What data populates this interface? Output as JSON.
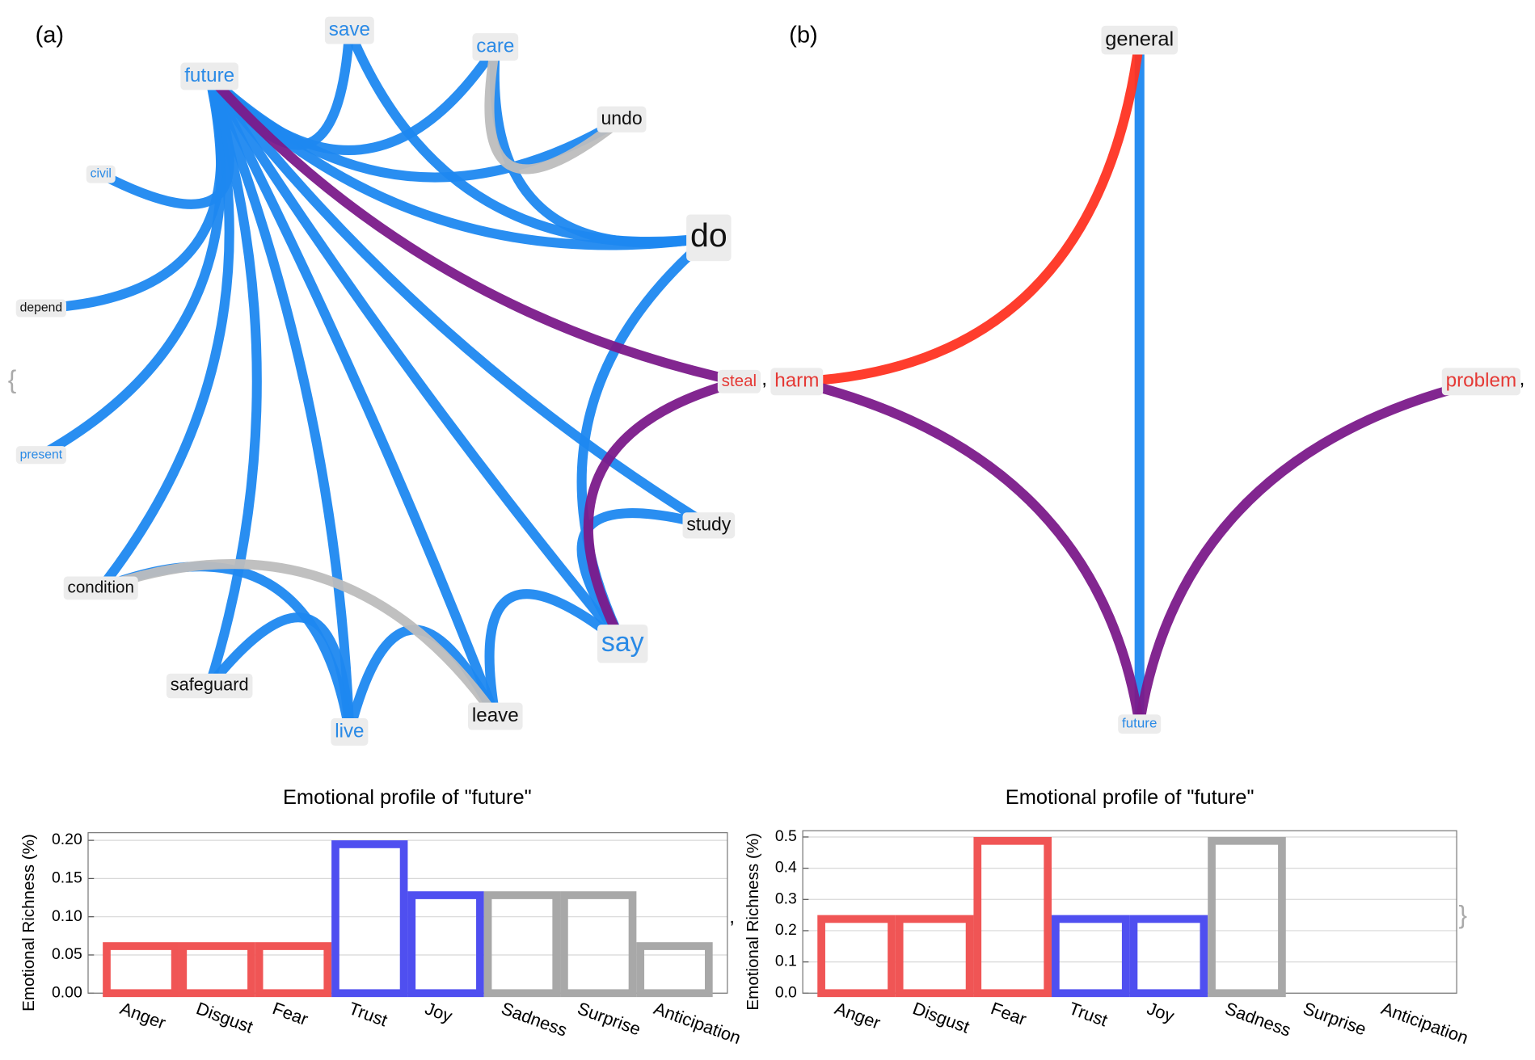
{
  "panel_labels": [
    "(a)",
    "(b)"
  ],
  "separators": {
    "open": "{",
    "close": "}",
    "comma": ","
  },
  "networks": [
    {
      "nodes": [
        {
          "label": "future",
          "color": "#2a8ae6"
        },
        {
          "label": "save",
          "color": "#2a8ae6"
        },
        {
          "label": "care",
          "color": "#2a8ae6"
        },
        {
          "label": "undo",
          "color": "#111111"
        },
        {
          "label": "do",
          "color": "#111111"
        },
        {
          "label": "steal",
          "color": "#e53935"
        },
        {
          "label": "study",
          "color": "#111111"
        },
        {
          "label": "say",
          "color": "#2a8ae6"
        },
        {
          "label": "leave",
          "color": "#111111"
        },
        {
          "label": "live",
          "color": "#2a8ae6"
        },
        {
          "label": "safeguard",
          "color": "#111111"
        },
        {
          "label": "condition",
          "color": "#111111"
        },
        {
          "label": "present",
          "color": "#2a8ae6"
        },
        {
          "label": "depend",
          "color": "#111111"
        },
        {
          "label": "civil",
          "color": "#2a8ae6"
        }
      ],
      "edges": [
        {
          "source": 0,
          "target": 1,
          "color": "#1e88f0"
        },
        {
          "source": 0,
          "target": 2,
          "color": "#1e88f0"
        },
        {
          "source": 0,
          "target": 3,
          "color": "#1e88f0"
        },
        {
          "source": 0,
          "target": 4,
          "color": "#1e88f0"
        },
        {
          "source": 0,
          "target": 6,
          "color": "#1e88f0"
        },
        {
          "source": 0,
          "target": 7,
          "color": "#1e88f0"
        },
        {
          "source": 0,
          "target": 8,
          "color": "#1e88f0"
        },
        {
          "source": 0,
          "target": 9,
          "color": "#1e88f0"
        },
        {
          "source": 0,
          "target": 10,
          "color": "#1e88f0"
        },
        {
          "source": 0,
          "target": 11,
          "color": "#1e88f0"
        },
        {
          "source": 0,
          "target": 12,
          "color": "#1e88f0"
        },
        {
          "source": 0,
          "target": 13,
          "color": "#1e88f0"
        },
        {
          "source": 0,
          "target": 14,
          "color": "#1e88f0"
        },
        {
          "source": 1,
          "target": 4,
          "color": "#1e88f0"
        },
        {
          "source": 2,
          "target": 4,
          "color": "#1e88f0"
        },
        {
          "source": 2,
          "target": 3,
          "color": "#bdbdbd"
        },
        {
          "source": 4,
          "target": 7,
          "color": "#1e88f0"
        },
        {
          "source": 7,
          "target": 6,
          "color": "#1e88f0"
        },
        {
          "source": 7,
          "target": 8,
          "color": "#1e88f0"
        },
        {
          "source": 9,
          "target": 8,
          "color": "#1e88f0"
        },
        {
          "source": 9,
          "target": 10,
          "color": "#1e88f0"
        },
        {
          "source": 9,
          "target": 11,
          "color": "#1e88f0"
        },
        {
          "source": 11,
          "target": 8,
          "color": "#bdbdbd"
        },
        {
          "source": 5,
          "target": 7,
          "color": "#7b1a8a"
        },
        {
          "source": 0,
          "target": 5,
          "color": "#7b1a8a"
        }
      ]
    },
    {
      "nodes": [
        {
          "label": "general",
          "color": "#111111"
        },
        {
          "label": "harm",
          "color": "#e53935"
        },
        {
          "label": "problem",
          "color": "#e53935"
        },
        {
          "label": "future",
          "color": "#2a8ae6"
        }
      ],
      "edges": [
        {
          "source": 0,
          "target": 3,
          "color": "#1e88f0"
        },
        {
          "source": 1,
          "target": 0,
          "color": "#ff3322"
        },
        {
          "source": 1,
          "target": 3,
          "color": "#7b1a8a"
        },
        {
          "source": 2,
          "target": 3,
          "color": "#7b1a8a"
        }
      ]
    }
  ],
  "chart_data": [
    {
      "type": "bar",
      "title": "Emotional profile of \"future\"",
      "y_label": "Emotional Richness (%)",
      "categories": [
        "Anger",
        "Disgust",
        "Fear",
        "Trust",
        "Joy",
        "Sadness",
        "Surprise",
        "Anticipation"
      ],
      "values": [
        0.0667,
        0.0667,
        0.0667,
        0.2,
        0.1333,
        0.1333,
        0.1333,
        0.0667
      ],
      "colors": [
        "#f05555",
        "#f05555",
        "#f05555",
        "#4f4ff0",
        "#4f4ff0",
        "#a8a8a8",
        "#a8a8a8",
        "#a8a8a8"
      ],
      "ylim": [
        0,
        0.21
      ],
      "yticks": [
        {
          "value": 0,
          "label": "0.00"
        },
        {
          "value": 0.05,
          "label": "0.05"
        },
        {
          "value": 0.1,
          "label": "0.10"
        },
        {
          "value": 0.15,
          "label": "0.15"
        },
        {
          "value": 0.2,
          "label": "0.20"
        }
      ],
      "grid": true
    },
    {
      "type": "bar",
      "title": "Emotional profile of \"future\"",
      "y_label": "Emotional Richness (%)",
      "categories": [
        "Anger",
        "Disgust",
        "Fear",
        "Trust",
        "Joy",
        "Sadness",
        "Surprise",
        "Anticipation"
      ],
      "values": [
        0.25,
        0.25,
        0.5,
        0.25,
        0.25,
        0.5,
        0,
        0
      ],
      "colors": [
        "#f05555",
        "#f05555",
        "#f05555",
        "#4f4ff0",
        "#4f4ff0",
        "#a8a8a8",
        "#a8a8a8",
        "#a8a8a8"
      ],
      "ylim": [
        0,
        0.52
      ],
      "yticks": [
        {
          "value": 0,
          "label": "0.0"
        },
        {
          "value": 0.1,
          "label": "0.1"
        },
        {
          "value": 0.2,
          "label": "0.2"
        },
        {
          "value": 0.3,
          "label": "0.3"
        },
        {
          "value": 0.4,
          "label": "0.4"
        },
        {
          "value": 0.5,
          "label": "0.5"
        }
      ],
      "grid": true
    }
  ]
}
